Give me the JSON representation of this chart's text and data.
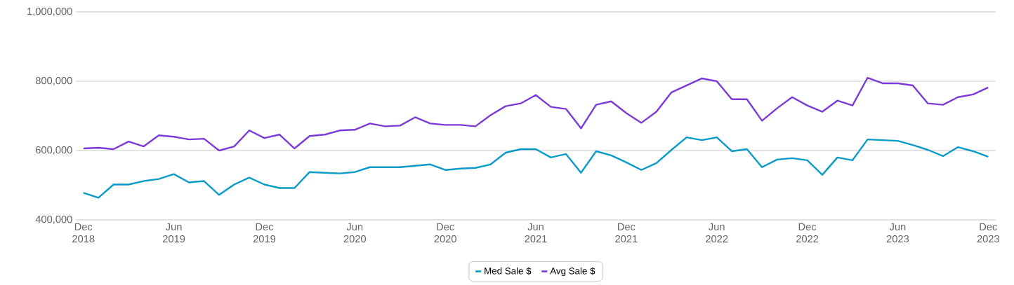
{
  "chart_data": {
    "type": "line",
    "x": [
      "2018-12",
      "2019-01",
      "2019-02",
      "2019-03",
      "2019-04",
      "2019-05",
      "2019-06",
      "2019-07",
      "2019-08",
      "2019-09",
      "2019-10",
      "2019-11",
      "2019-12",
      "2020-01",
      "2020-02",
      "2020-03",
      "2020-04",
      "2020-05",
      "2020-06",
      "2020-07",
      "2020-08",
      "2020-09",
      "2020-10",
      "2020-11",
      "2020-12",
      "2021-01",
      "2021-02",
      "2021-03",
      "2021-04",
      "2021-05",
      "2021-06",
      "2021-07",
      "2021-08",
      "2021-09",
      "2021-10",
      "2021-11",
      "2021-12",
      "2022-01",
      "2022-02",
      "2022-03",
      "2022-04",
      "2022-05",
      "2022-06",
      "2022-07",
      "2022-08",
      "2022-09",
      "2022-10",
      "2022-11",
      "2022-12",
      "2023-01",
      "2023-02",
      "2023-03",
      "2023-04",
      "2023-05",
      "2023-06",
      "2023-07",
      "2023-08",
      "2023-09",
      "2023-10",
      "2023-11",
      "2023-12"
    ],
    "series": [
      {
        "name": "Med Sale $",
        "color": "#0a9bc7",
        "values": [
          478000,
          464000,
          502000,
          502000,
          512000,
          518000,
          532000,
          508000,
          512000,
          472000,
          502000,
          522000,
          502000,
          492000,
          492000,
          538000,
          536000,
          534000,
          538000,
          552000,
          552000,
          552000,
          556000,
          560000,
          544000,
          548000,
          550000,
          560000,
          594000,
          604000,
          604000,
          580000,
          590000,
          536000,
          598000,
          586000,
          566000,
          544000,
          564000,
          602000,
          638000,
          630000,
          638000,
          598000,
          604000,
          552000,
          574000,
          578000,
          572000,
          530000,
          580000,
          572000,
          632000,
          630000,
          628000,
          616000,
          602000,
          584000,
          610000,
          598000,
          582000
        ]
      },
      {
        "name": "Avg Sale $",
        "color": "#7c3ad8",
        "values": [
          606000,
          608000,
          604000,
          626000,
          612000,
          644000,
          640000,
          632000,
          634000,
          600000,
          612000,
          658000,
          636000,
          646000,
          606000,
          642000,
          646000,
          658000,
          660000,
          678000,
          670000,
          672000,
          696000,
          678000,
          674000,
          674000,
          670000,
          702000,
          728000,
          736000,
          760000,
          726000,
          720000,
          664000,
          732000,
          742000,
          708000,
          680000,
          712000,
          768000,
          788000,
          808000,
          800000,
          748000,
          748000,
          686000,
          722000,
          754000,
          730000,
          712000,
          744000,
          730000,
          810000,
          794000,
          794000,
          788000,
          736000,
          732000,
          754000,
          762000,
          782000
        ]
      }
    ],
    "xlim": [
      "2018-11-16",
      "2023-12-16"
    ],
    "xticks": [
      {
        "value": "2018-12",
        "label": "Dec 2018"
      },
      {
        "value": "2019-06",
        "label": "Jun 2019"
      },
      {
        "value": "2019-12",
        "label": "Dec 2019"
      },
      {
        "value": "2020-06",
        "label": "Jun 2020"
      },
      {
        "value": "2020-12",
        "label": "Dec 2020"
      },
      {
        "value": "2021-06",
        "label": "Jun 2021"
      },
      {
        "value": "2021-12",
        "label": "Dec 2021"
      },
      {
        "value": "2022-06",
        "label": "Jun 2022"
      },
      {
        "value": "2022-12",
        "label": "Dec 2022"
      },
      {
        "value": "2023-06",
        "label": "Jun 2023"
      },
      {
        "value": "2023-12",
        "label": "Dec 2023"
      }
    ],
    "ylim": [
      400000,
      1000000
    ],
    "yticks": [
      {
        "value": 400000,
        "label": "400,000"
      },
      {
        "value": 600000,
        "label": "600,000"
      },
      {
        "value": 800000,
        "label": "800,000"
      },
      {
        "value": 1000000,
        "label": "1,000,000"
      }
    ],
    "grid": "y",
    "legend": "bottom",
    "marker": "none",
    "line_style": "solid"
  }
}
